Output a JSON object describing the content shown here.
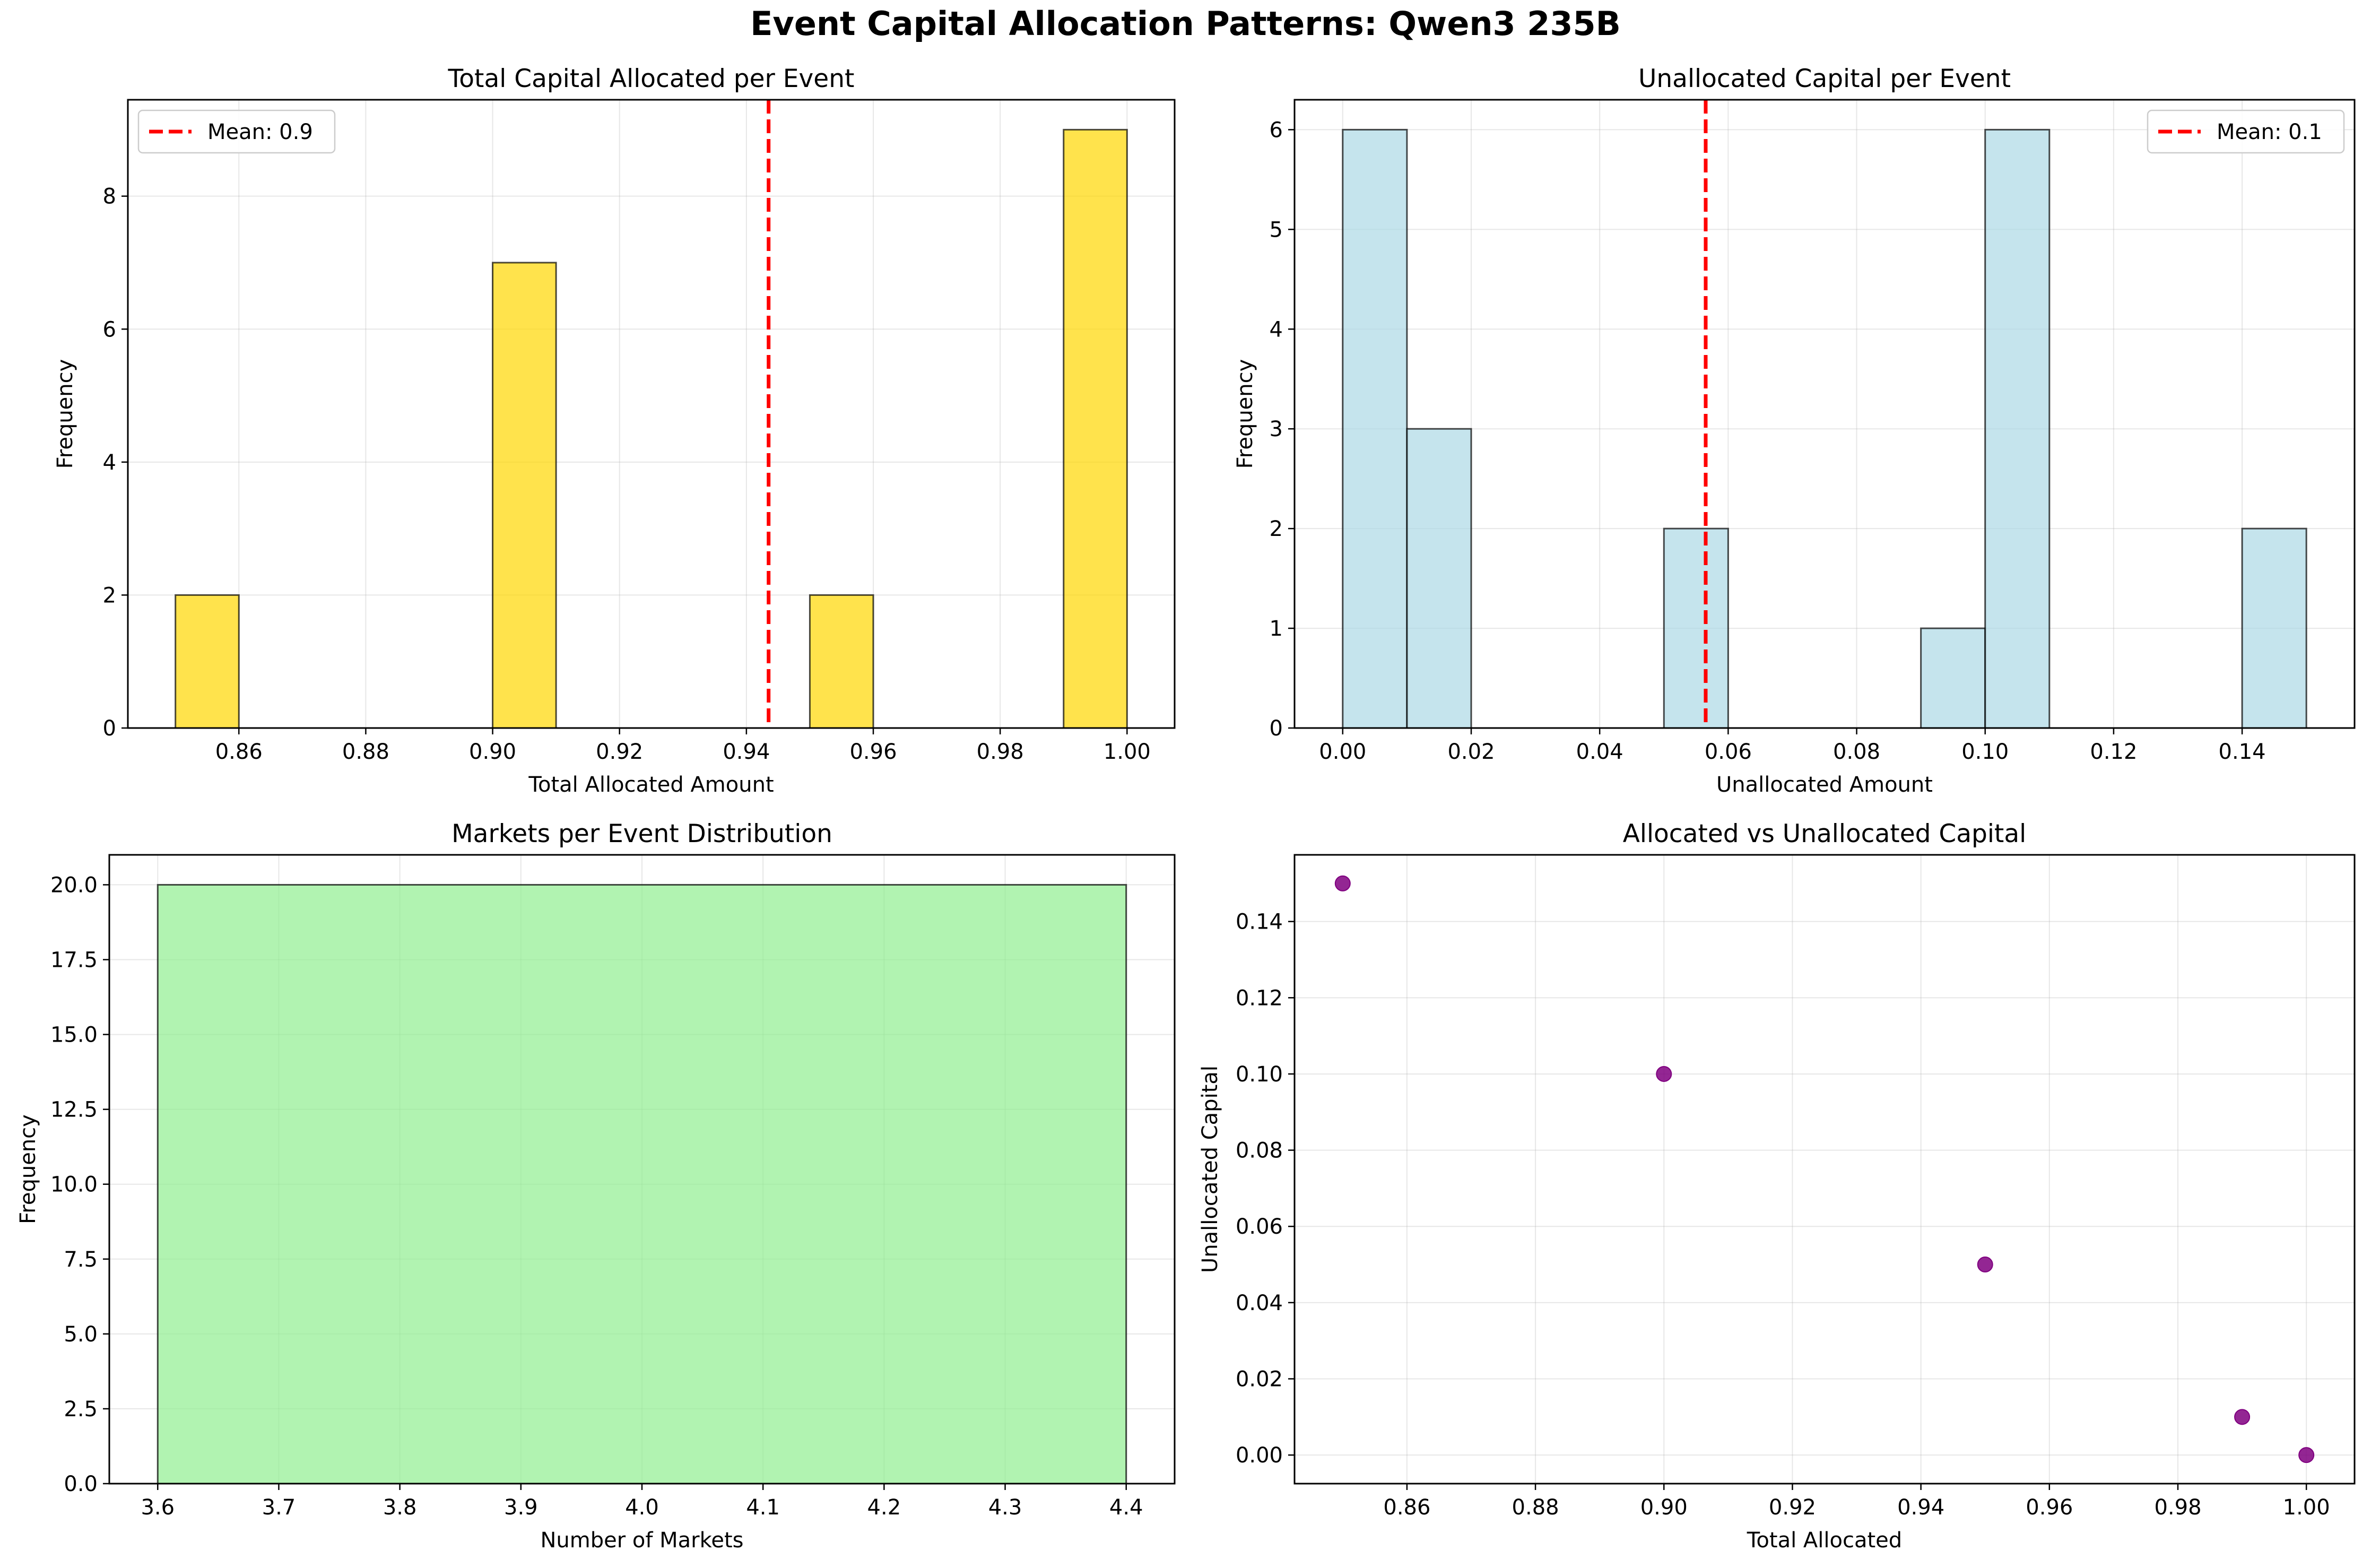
{
  "suptitle": "Event Capital Allocation Patterns: Qwen3 235B",
  "colors": {
    "hist1": "#FFD700",
    "hist2": "#ADD8E6",
    "hist3": "#90EE90",
    "scatter": "#800080",
    "mean_line": "#FF0000",
    "edge": "#000000",
    "grid": "#b0b0b0"
  },
  "chart_data": [
    {
      "type": "bar",
      "title": "Total Capital Allocated per Event",
      "xlabel": "Total Allocated Amount",
      "ylabel": "Frequency",
      "xlim": [
        0.8425,
        1.0075
      ],
      "ylim": [
        0,
        9.45
      ],
      "xticks": [
        0.86,
        0.88,
        0.9,
        0.92,
        0.94,
        0.96,
        0.98,
        1.0
      ],
      "xtick_labels": [
        "0.86",
        "0.88",
        "0.90",
        "0.92",
        "0.94",
        "0.96",
        "0.98",
        "1.00"
      ],
      "yticks": [
        0,
        2,
        4,
        6,
        8
      ],
      "ytick_labels": [
        "0",
        "2",
        "4",
        "6",
        "8"
      ],
      "bins": [
        {
          "x0": 0.85,
          "x1": 0.86,
          "count": 2
        },
        {
          "x0": 0.9,
          "x1": 0.91,
          "count": 7
        },
        {
          "x0": 0.95,
          "x1": 0.96,
          "count": 2
        },
        {
          "x0": 0.99,
          "x1": 1.0,
          "count": 9
        }
      ],
      "mean_line": {
        "x": 0.9435,
        "label": "Mean: 0.9"
      },
      "legend": "upper left",
      "grid": true
    },
    {
      "type": "bar",
      "title": "Unallocated Capital per Event",
      "xlabel": "Unallocated Amount",
      "ylabel": "Frequency",
      "xlim": [
        -0.0075,
        0.1575
      ],
      "ylim": [
        0,
        6.3
      ],
      "xticks": [
        0.0,
        0.02,
        0.04,
        0.06,
        0.08,
        0.1,
        0.12,
        0.14
      ],
      "xtick_labels": [
        "0.00",
        "0.02",
        "0.04",
        "0.06",
        "0.08",
        "0.10",
        "0.12",
        "0.14"
      ],
      "yticks": [
        0,
        1,
        2,
        3,
        4,
        5,
        6
      ],
      "ytick_labels": [
        "0",
        "1",
        "2",
        "3",
        "4",
        "5",
        "6"
      ],
      "bins": [
        {
          "x0": 0.0,
          "x1": 0.01,
          "count": 6
        },
        {
          "x0": 0.01,
          "x1": 0.02,
          "count": 3
        },
        {
          "x0": 0.05,
          "x1": 0.06,
          "count": 2
        },
        {
          "x0": 0.09,
          "x1": 0.1,
          "count": 1
        },
        {
          "x0": 0.1,
          "x1": 0.11,
          "count": 6
        },
        {
          "x0": 0.14,
          "x1": 0.15,
          "count": 2
        }
      ],
      "mean_line": {
        "x": 0.0565,
        "label": "Mean: 0.1"
      },
      "legend": "upper right",
      "grid": true
    },
    {
      "type": "bar",
      "title": "Markets per Event Distribution",
      "xlabel": "Number of Markets",
      "ylabel": "Frequency",
      "xlim": [
        3.56,
        4.44
      ],
      "ylim": [
        0,
        21
      ],
      "xticks": [
        3.6,
        3.7,
        3.8,
        3.9,
        4.0,
        4.1,
        4.2,
        4.3,
        4.4
      ],
      "xtick_labels": [
        "3.6",
        "3.7",
        "3.8",
        "3.9",
        "4.0",
        "4.1",
        "4.2",
        "4.3",
        "4.4"
      ],
      "yticks": [
        0,
        2.5,
        5,
        7.5,
        10,
        12.5,
        15,
        17.5,
        20
      ],
      "ytick_labels": [
        "0.0",
        "2.5",
        "5.0",
        "7.5",
        "10.0",
        "12.5",
        "15.0",
        "17.5",
        "20.0"
      ],
      "bins": [
        {
          "x0": 3.6,
          "x1": 4.4,
          "count": 20
        }
      ],
      "grid": true
    },
    {
      "type": "scatter",
      "title": "Allocated vs Unallocated Capital",
      "xlabel": "Total Allocated",
      "ylabel": "Unallocated Capital",
      "xlim": [
        0.8425,
        1.0075
      ],
      "ylim": [
        -0.0075,
        0.1575
      ],
      "xticks": [
        0.86,
        0.88,
        0.9,
        0.92,
        0.94,
        0.96,
        0.98,
        1.0
      ],
      "xtick_labels": [
        "0.86",
        "0.88",
        "0.90",
        "0.92",
        "0.94",
        "0.96",
        "0.98",
        "1.00"
      ],
      "yticks": [
        0.0,
        0.02,
        0.04,
        0.06,
        0.08,
        0.1,
        0.12,
        0.14
      ],
      "ytick_labels": [
        "0.00",
        "0.02",
        "0.04",
        "0.06",
        "0.08",
        "0.10",
        "0.12",
        "0.14"
      ],
      "points": [
        {
          "x": 0.85,
          "y": 0.15
        },
        {
          "x": 0.9,
          "y": 0.1
        },
        {
          "x": 0.95,
          "y": 0.05
        },
        {
          "x": 0.99,
          "y": 0.01
        },
        {
          "x": 1.0,
          "y": 0.0
        }
      ],
      "grid": true
    }
  ]
}
